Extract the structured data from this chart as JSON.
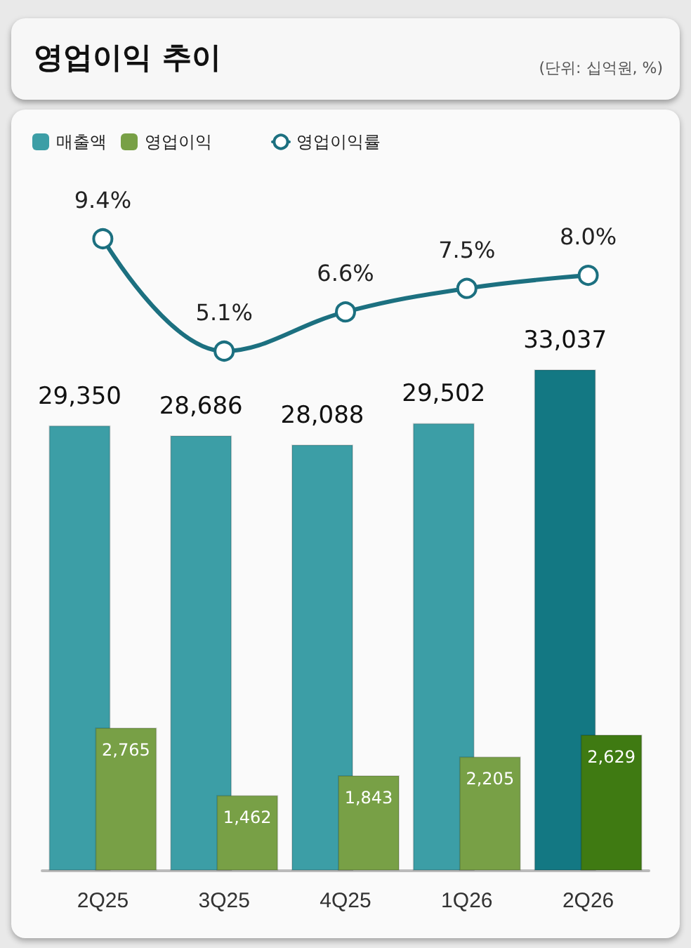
{
  "chart_data": [
    {
      "type": "line",
      "title": "영업이익 추이",
      "subtitle": "(단위: 십억원, %)",
      "categories": [
        null,
        null,
        null,
        null,
        null
      ],
      "series": [
        {
          "name": "영업이익률",
          "color": "#1c7080",
          "values": [
            9.4,
            5.1,
            6.6,
            7.5,
            8.0
          ],
          "value_labels": [
            "9.4%",
            "5.1%",
            "6.6%",
            "7.5%",
            "8.0%"
          ]
        }
      ],
      "legend": "top left",
      "marker": "circle",
      "tick_labels": false
    },
    {
      "type": "bar",
      "categories": [
        "2Q25",
        "3Q25",
        "4Q25",
        "1Q26",
        "2Q26"
      ],
      "series": [
        {
          "name": "매출액",
          "colors": [
            "#3c9ea6",
            "#3c9ea6",
            "#3c9ea6",
            "#3c9ea6",
            "#137883"
          ],
          "values": [
            29350,
            28686,
            28088,
            29502,
            33037
          ],
          "value_labels": [
            "29,350",
            "28,686",
            "28,088",
            "29,502",
            "33,037"
          ]
        },
        {
          "name": "영업이익",
          "axis": "y2",
          "colors": [
            "#78a046",
            "#78a046",
            "#78a046",
            "#78a046",
            "#3f7a12"
          ],
          "values": [
            2765,
            1462,
            1843,
            2205,
            2629
          ],
          "value_labels": [
            "2,765",
            "1,462",
            "1,843",
            "2,205",
            "2,629"
          ]
        }
      ],
      "legend": "top left",
      "tick_labels": "x"
    }
  ]
}
